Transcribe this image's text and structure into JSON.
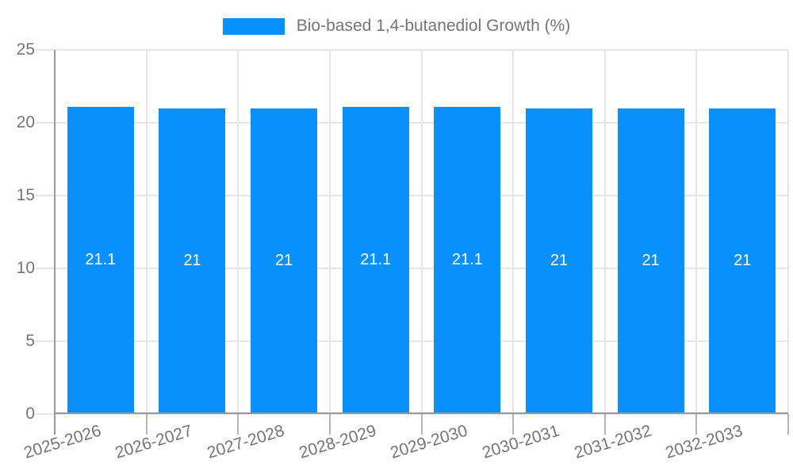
{
  "legend": {
    "label": "Bio-based 1,4-butanediol Growth (%)"
  },
  "chart_data": {
    "type": "bar",
    "title": "",
    "xlabel": "",
    "ylabel": "",
    "categories": [
      "2025-2026",
      "2026-2027",
      "2027-2028",
      "2028-2029",
      "2029-2030",
      "2030-2031",
      "2031-2032",
      "2032-2033"
    ],
    "series": [
      {
        "name": "Bio-based 1,4-butanediol Growth (%)",
        "values": [
          21.1,
          21,
          21,
          21.1,
          21.1,
          21,
          21,
          21
        ]
      }
    ],
    "bar_value_labels": [
      "21.1",
      "21",
      "21",
      "21.1",
      "21.1",
      "21",
      "21",
      "21"
    ],
    "ylim": [
      0,
      25
    ],
    "yticks": [
      0,
      5,
      10,
      15,
      20,
      25
    ],
    "grid": true,
    "legend_position": "top-center",
    "colors": {
      "bar": "#0A90FA",
      "grid": "#e6e6e6",
      "axis": "#999999",
      "tick": "#b5b5b5",
      "tick_text": "#757575",
      "bar_label_text": "#ffffff",
      "background": "#ffffff"
    }
  }
}
